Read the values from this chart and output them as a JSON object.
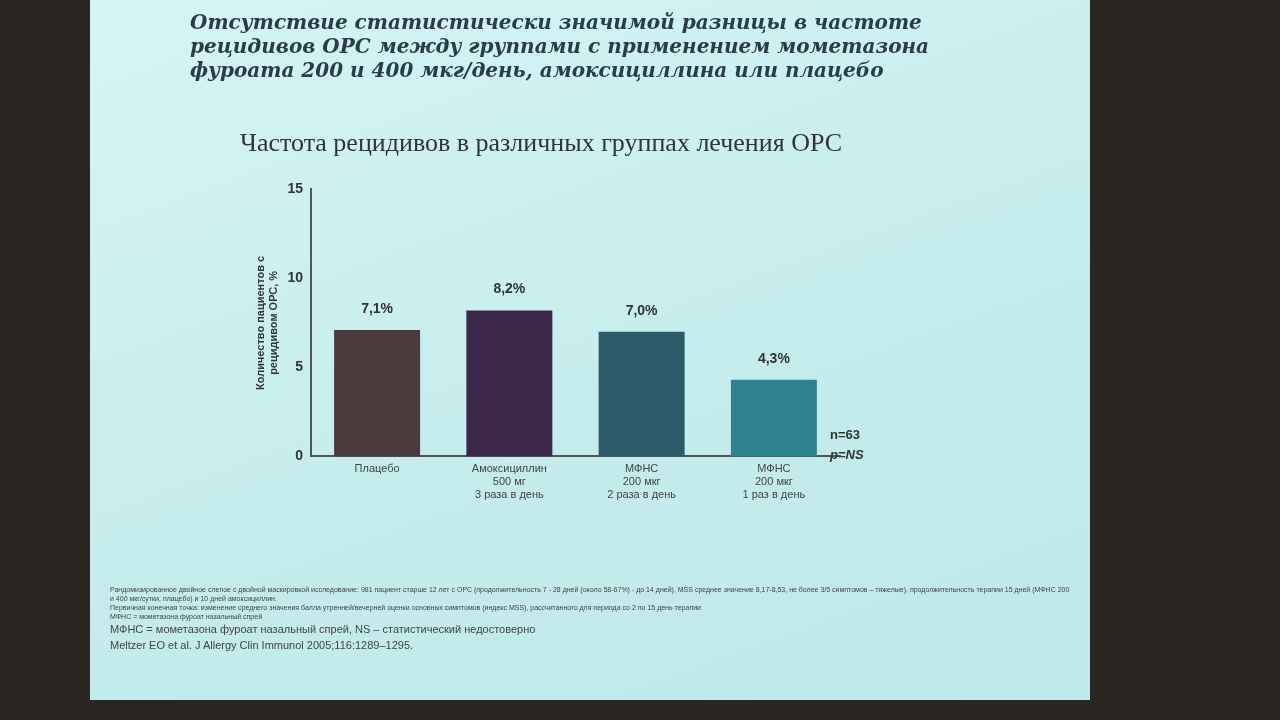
{
  "chart_data": {
    "type": "bar",
    "title": "Отсутствие статистически значимой разницы в частоте рецидивов ОРС между группами с применением мометазона фуроата 200 и 400 мкг/день, амоксициллина или плацебо",
    "subtitle": "Частота рецидивов в различных группах лечения ОРС",
    "ylabel": "Количество пациентов с\nрецидивом ОРС, %",
    "categories": [
      "Плацебо",
      "Амоксициллин\n500 мг\n3 раза в день",
      "МФНС\n200 мкг\n2 раза в день",
      "МФНС\n200 мкг\n1 раз в день"
    ],
    "values": [
      7.1,
      8.2,
      7.0,
      4.3
    ],
    "colors": [
      "#4a3a3c",
      "#3b2748",
      "#2d5a68",
      "#2f8190"
    ],
    "value_labels": [
      "7,1%",
      "8,2%",
      "7,0%",
      "4,3%"
    ],
    "ylim": [
      0,
      15
    ],
    "yticks": [
      0,
      5,
      10,
      15
    ],
    "grid": false,
    "legend": false,
    "annotations": [
      "n=63",
      "p=NS",
      "Рандомизированное двойное слепое с двойной маскировкой исследование: 981 пациент старше 12 лет с ОРС (продолжительность 7 - 28 дней (около 58-67%) - до 14 дней), MSS среднее значение 8,17-8,53, не более 3/5 симптомов – тяжелые), продолжительность терапии 15 дней (МФНС 200 и 400 мкг/сутки, плацебо) и 10 дней амоксициллин.",
      "Первичная конечная точка: изменение среднего значения балла утренней/вечерней оценки основных симптомов (индекс MSS), рассчитанного для периода со 2 по 15 день терапии",
      "МФНС = мометазона фуроат назальный спрей",
      "МФНС = мометазона фуроат назальный спрей, NS – статистический недостоверно",
      "Meltzer EO et al. J Allergy Clin Immunol 2005;116:1289–1295."
    ]
  }
}
